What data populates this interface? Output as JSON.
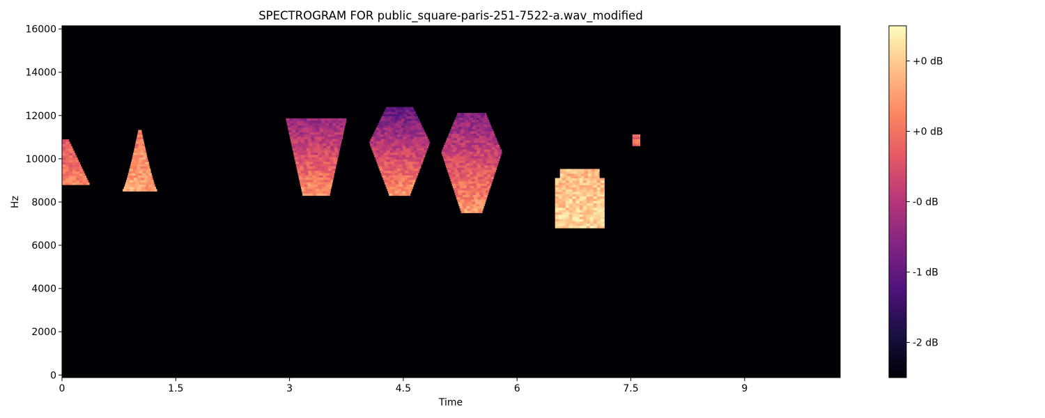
{
  "chart_data": {
    "type": "heatmap",
    "title": "SPECTROGRAM FOR public_square-paris-251-7522-a.wav_modified",
    "xlabel": "Time",
    "ylabel": "Hz",
    "xlim": [
      0,
      10.26
    ],
    "ylim": [
      -120,
      16150
    ],
    "x_ticks": [
      0,
      1.5,
      3,
      4.5,
      6,
      7.5,
      9
    ],
    "x_tick_labels": [
      "0",
      "1.5",
      "3",
      "4.5",
      "6",
      "7.5",
      "9"
    ],
    "y_ticks": [
      0,
      2000,
      4000,
      6000,
      8000,
      10000,
      12000,
      14000,
      16000
    ],
    "y_tick_labels": [
      "0",
      "2000",
      "4000",
      "6000",
      "8000",
      "10000",
      "12000",
      "14000",
      "16000"
    ],
    "background_color": "#000004",
    "colormap": "magma",
    "colorbar": {
      "position": "right",
      "ticks": [
        0.1,
        0.3,
        0.5,
        0.7,
        0.9
      ],
      "labels": [
        "-2 dB",
        "-1 dB",
        "-0 dB",
        "+0 dB",
        "+0 dB"
      ]
    },
    "sound_events": [
      {
        "t_start": 0.0,
        "t_end": 0.36,
        "f_low": 8800,
        "f_high": 10800,
        "shape": "wedge",
        "level_low": 0.74,
        "level_high": 0.62
      },
      {
        "t_start": 0.8,
        "t_end": 1.25,
        "f_low": 8500,
        "f_high": 11300,
        "shape": "spire",
        "level_low": 0.82,
        "level_high": 0.7
      },
      {
        "t_start": 2.95,
        "t_end": 3.75,
        "f_low": 8300,
        "f_high": 11800,
        "shape": "funnel",
        "level_low": 0.78,
        "level_high": 0.42
      },
      {
        "t_start": 4.05,
        "t_end": 4.85,
        "f_low": 8300,
        "f_high": 12300,
        "shape": "diamond",
        "level_low": 0.8,
        "level_high": 0.3
      },
      {
        "t_start": 5.0,
        "t_end": 5.8,
        "f_low": 7500,
        "f_high": 12100,
        "shape": "diamond",
        "level_low": 0.8,
        "level_high": 0.38
      },
      {
        "t_start": 6.5,
        "t_end": 7.15,
        "f_low": 6800,
        "f_high": 9500,
        "shape": "block",
        "level_low": 0.92,
        "level_high": 0.86
      },
      {
        "t_start": 7.52,
        "t_end": 7.62,
        "f_low": 10600,
        "f_high": 11050,
        "shape": "speck",
        "level_low": 0.68,
        "level_high": 0.68
      }
    ]
  }
}
